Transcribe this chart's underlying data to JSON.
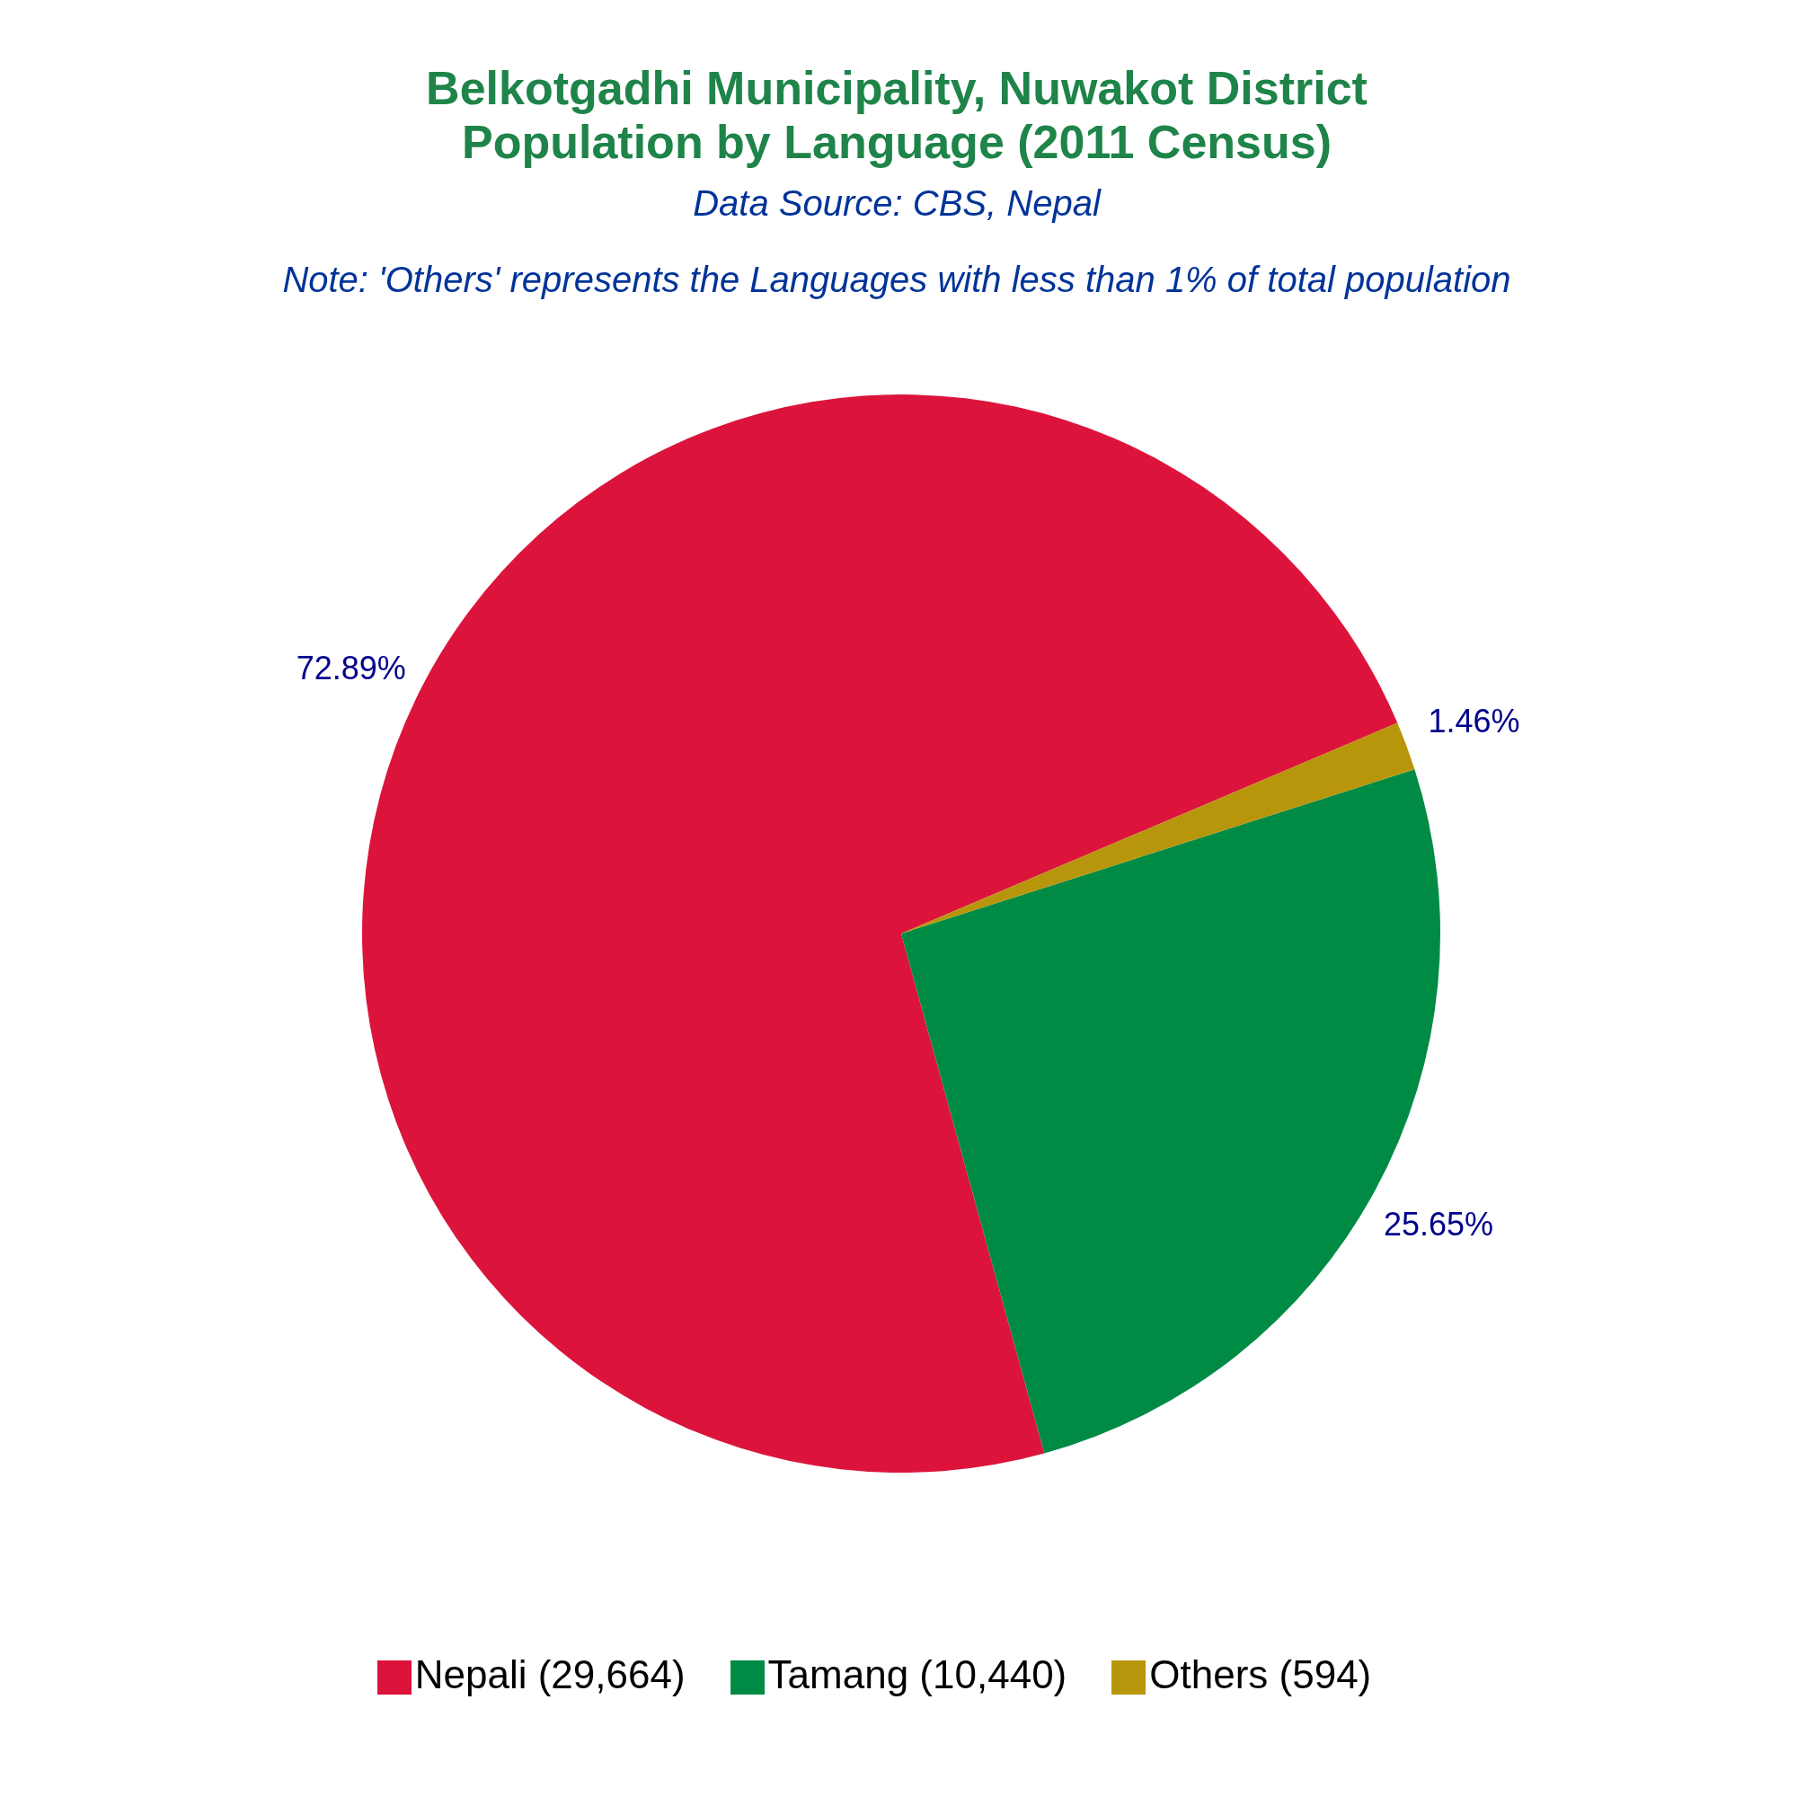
{
  "chart_data": {
    "type": "pie",
    "title": "Belkotgadhi Municipality, Nuwakot District\nPopulation by Language (2011 Census)",
    "annotations": [
      "Data Source: CBS, Nepal",
      "Note: 'Others' represents the Languages with less than 1% of total population"
    ],
    "categories": [
      "Nepali (29,664)",
      "Tamang (10,440)",
      "Others (594)"
    ],
    "values": [
      72.89,
      25.65,
      1.46
    ],
    "colors": [
      "#dc143c",
      "#008b45",
      "#b8960c"
    ],
    "value_labels": [
      "72.89%",
      "25.65%",
      "1.46%"
    ],
    "legend": "bottom"
  }
}
